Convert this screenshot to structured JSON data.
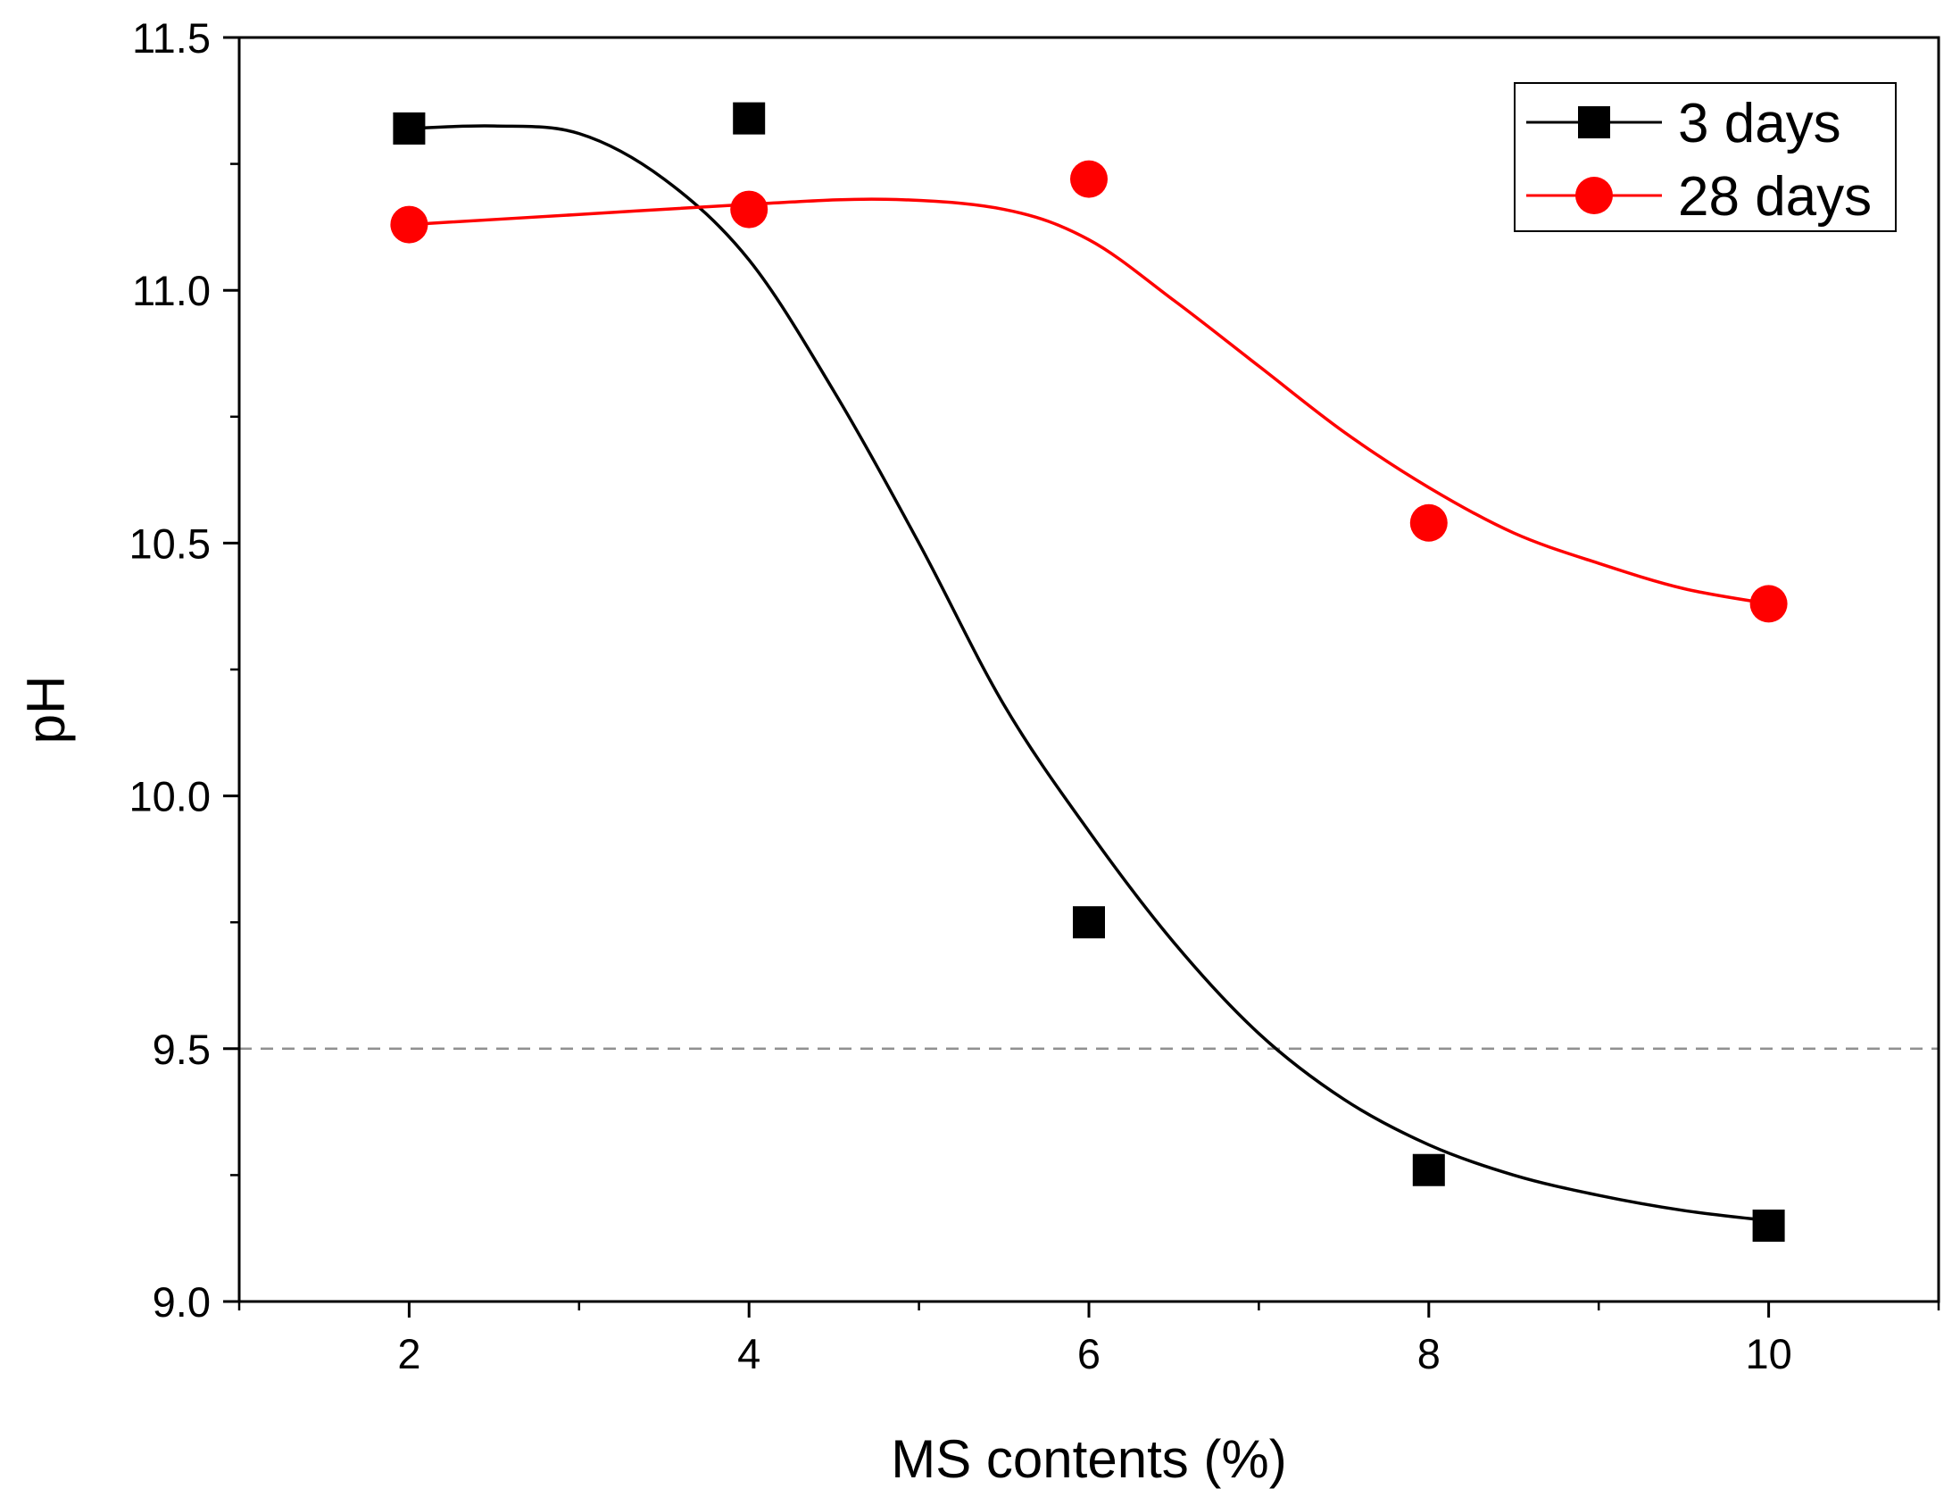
{
  "chart_data": {
    "type": "scatter",
    "title": "",
    "xlabel": "MS contents (%)",
    "ylabel": "pH",
    "xlim": [
      1,
      11
    ],
    "ylim": [
      9.0,
      11.5
    ],
    "xticks": [
      "2",
      "4",
      "6",
      "8",
      "10"
    ],
    "yticks": [
      "9.0",
      "9.5",
      "10.0",
      "10.5",
      "11.0",
      "11.5"
    ],
    "reference_line": {
      "y": 9.5,
      "style": "dashed",
      "color": "#909090"
    },
    "legend_position": "top-right",
    "series": [
      {
        "name": "3 days",
        "marker": "square",
        "color": "#000000",
        "x": [
          2,
          4,
          6,
          8,
          10
        ],
        "values": [
          11.32,
          11.34,
          9.75,
          9.26,
          9.15
        ],
        "fit": [
          [
            2,
            11.32
          ],
          [
            2.5,
            11.325
          ],
          [
            3,
            11.31
          ],
          [
            3.5,
            11.22
          ],
          [
            4,
            11.06
          ],
          [
            4.5,
            10.8
          ],
          [
            5,
            10.5
          ],
          [
            5.5,
            10.18
          ],
          [
            6,
            9.93
          ],
          [
            6.5,
            9.71
          ],
          [
            7,
            9.53
          ],
          [
            7.5,
            9.4
          ],
          [
            8,
            9.31
          ],
          [
            8.5,
            9.25
          ],
          [
            9,
            9.21
          ],
          [
            9.5,
            9.18
          ],
          [
            10,
            9.16
          ]
        ]
      },
      {
        "name": "28 days",
        "marker": "circle",
        "color": "#ff0000",
        "x": [
          2,
          4,
          6,
          8,
          10
        ],
        "values": [
          11.13,
          11.16,
          11.22,
          10.54,
          10.38
        ],
        "fit": [
          [
            2,
            11.13
          ],
          [
            3,
            11.15
          ],
          [
            4,
            11.17
          ],
          [
            4.8,
            11.18
          ],
          [
            5.5,
            11.16
          ],
          [
            6,
            11.1
          ],
          [
            6.5,
            10.98
          ],
          [
            7,
            10.85
          ],
          [
            7.5,
            10.72
          ],
          [
            8,
            10.61
          ],
          [
            8.5,
            10.52
          ],
          [
            9,
            10.46
          ],
          [
            9.5,
            10.41
          ],
          [
            10,
            10.38
          ]
        ]
      }
    ]
  }
}
